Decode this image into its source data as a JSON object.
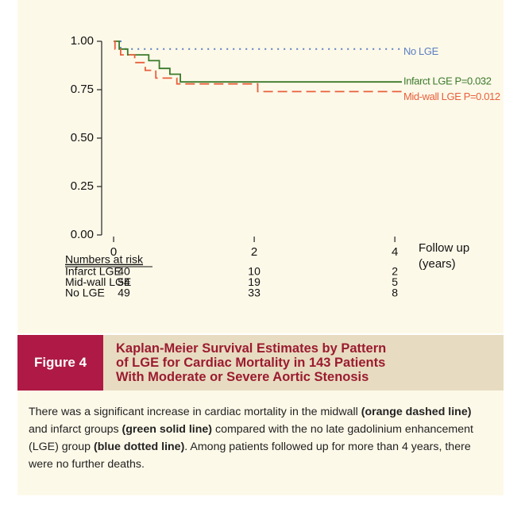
{
  "figure": {
    "chart_data": {
      "type": "line",
      "xlabel": [
        "Follow up",
        "(years)"
      ],
      "xlim": [
        -0.17,
        4.1
      ],
      "xticks": [
        0,
        2,
        4
      ],
      "ylim": [
        0,
        1
      ],
      "yticks": [
        {
          "value": 0,
          "label": "0.00"
        },
        {
          "value": 0.25,
          "label": "0.25"
        },
        {
          "value": 0.5,
          "label": "0.50"
        },
        {
          "value": 0.75,
          "label": "0.75"
        },
        {
          "value": 1,
          "label": "1.00"
        }
      ],
      "series": [
        {
          "name": "No LGE",
          "color": "#5b7fc0",
          "style": "dotted",
          "x": [
            0,
            0.1,
            0.1,
            4.1
          ],
          "values": [
            1,
            1,
            0.96,
            0.96
          ]
        },
        {
          "name": "Infarct LGE P=0.032",
          "color": "#3b7a2a",
          "style": "solid",
          "x": [
            0,
            0.08,
            0.08,
            0.2,
            0.2,
            0.5,
            0.5,
            0.65,
            0.65,
            0.8,
            0.8,
            0.95,
            0.95,
            4.1
          ],
          "values": [
            1,
            1,
            0.96,
            0.96,
            0.93,
            0.93,
            0.9,
            0.9,
            0.86,
            0.86,
            0.83,
            0.83,
            0.79,
            0.79
          ]
        },
        {
          "name": "Mid-wall LGE P=0.012",
          "color": "#e8603c",
          "style": "dashed",
          "x": [
            0,
            0.02,
            0.02,
            0.1,
            0.1,
            0.3,
            0.3,
            0.45,
            0.45,
            0.6,
            0.6,
            0.9,
            0.9,
            2.05,
            2.05,
            4.1
          ],
          "values": [
            1,
            1,
            0.96,
            0.96,
            0.93,
            0.93,
            0.89,
            0.89,
            0.85,
            0.85,
            0.81,
            0.81,
            0.78,
            0.78,
            0.74,
            0.74
          ]
        }
      ],
      "risk_table": {
        "title": "Numbers at risk",
        "rows": [
          {
            "name": "Infarct LGE",
            "values": [
              40,
              10,
              2
            ]
          },
          {
            "name": "Mid-wall LGE",
            "values": [
              54,
              19,
              5
            ]
          },
          {
            "name": "No LGE",
            "values": [
              49,
              33,
              8
            ]
          }
        ]
      }
    },
    "label": "Figure 4",
    "title": [
      "Kaplan-Meier Survival Estimates by Pattern",
      "of LGE for Cardiac Mortality in 143 Patients",
      "With Moderate or Severe Aortic Stenosis"
    ],
    "caption": [
      {
        "text": "There was a significant increase in cardiac mortality in the midwall ",
        "bold": false
      },
      {
        "text": "(orange dashed line)",
        "bold": true
      },
      {
        "text": " and infarct groups ",
        "bold": false
      },
      {
        "text": "(green solid line)",
        "bold": true
      },
      {
        "text": " compared with the no late gadolinium enhancement (LGE) group ",
        "bold": false
      },
      {
        "text": "(blue dotted line)",
        "bold": true
      },
      {
        "text": ". Among patients followed up for more than 4 years, there were no further deaths.",
        "bold": false
      }
    ]
  }
}
